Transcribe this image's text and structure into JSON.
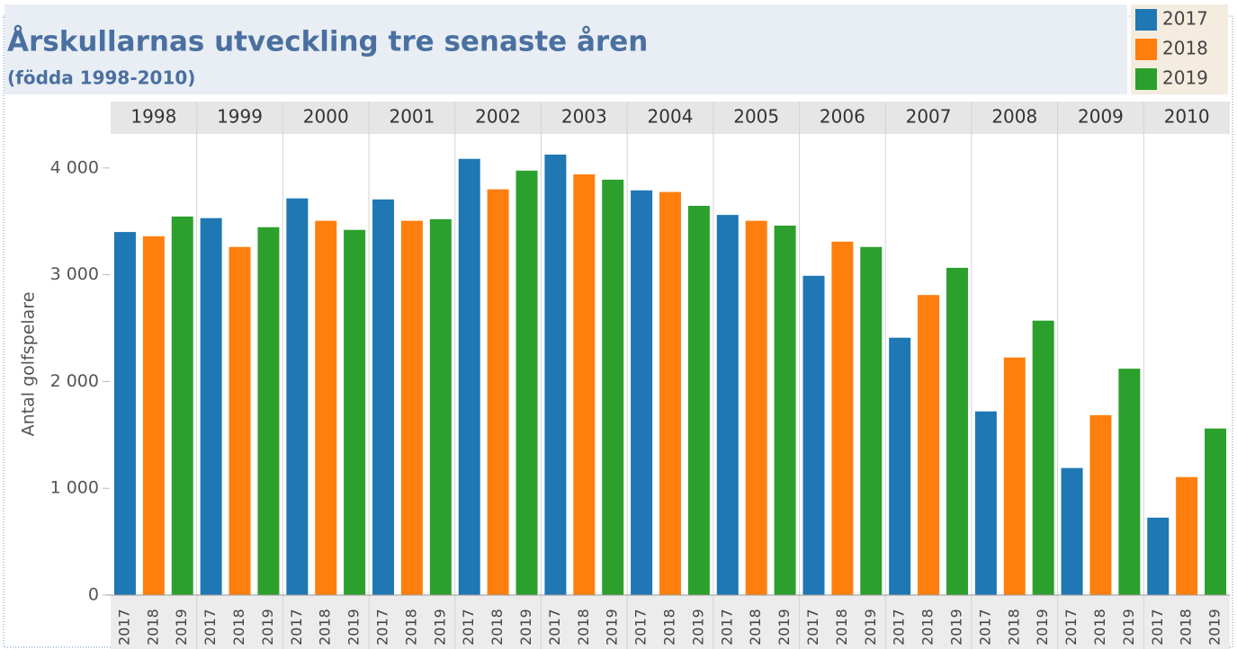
{
  "chart_data": {
    "type": "bar",
    "title": "Årskullarnas utveckling tre senaste åren",
    "subtitle": "(födda 1998-2010)",
    "y_label": "Antal golfspelare",
    "categories": [
      "1998",
      "1999",
      "2000",
      "2001",
      "2002",
      "2003",
      "2004",
      "2005",
      "2006",
      "2007",
      "2008",
      "2009",
      "2010"
    ],
    "series": [
      {
        "name": "2017",
        "color": "#1f77b4",
        "values": [
          3400,
          3530,
          3715,
          3705,
          4085,
          4125,
          3790,
          3560,
          2990,
          2410,
          1720,
          1190,
          725
        ]
      },
      {
        "name": "2018",
        "color": "#ff7f0e",
        "values": [
          3360,
          3260,
          3505,
          3505,
          3800,
          3940,
          3775,
          3505,
          3310,
          2810,
          2225,
          1685,
          1105
        ]
      },
      {
        "name": "2019",
        "color": "#2ca02c",
        "values": [
          3545,
          3445,
          3420,
          3520,
          3975,
          3890,
          3645,
          3460,
          3260,
          3065,
          2570,
          2120,
          1560
        ]
      }
    ],
    "ylim": [
      0,
      4310
    ],
    "yticks": [
      0,
      {
        "value": 1000,
        "label": "1 000"
      },
      {
        "value": 2000,
        "label": "2 000"
      },
      {
        "value": 3000,
        "label": "3 000"
      },
      {
        "value": 4000,
        "label": "4 000"
      }
    ]
  }
}
